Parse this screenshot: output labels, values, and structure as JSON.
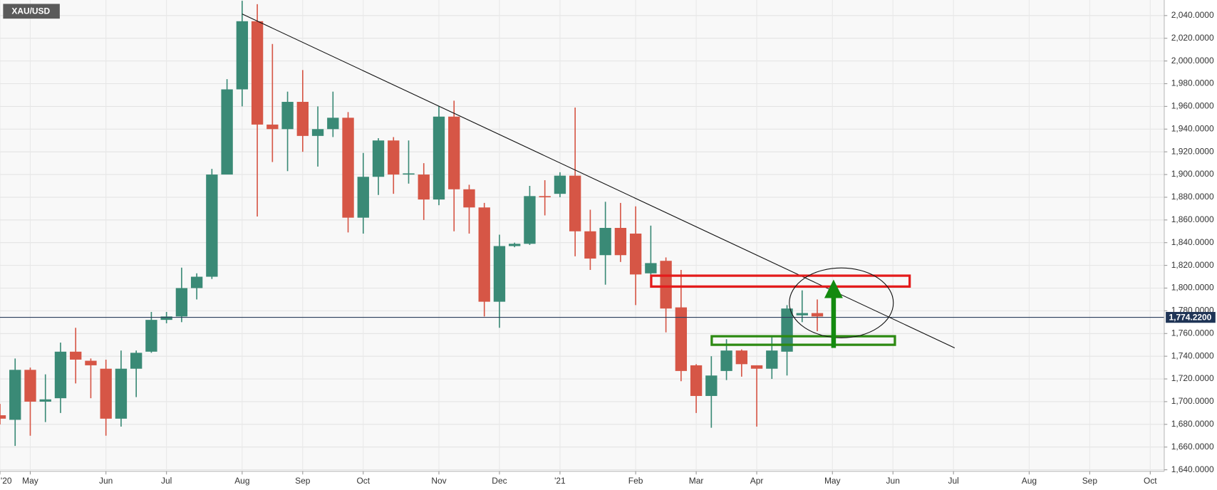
{
  "chart_data": {
    "type": "candlestick",
    "title": "XAU/USD",
    "categories": [
      "'20",
      null,
      "May",
      null,
      null,
      null,
      null,
      "Jun",
      null,
      null,
      null,
      "Jul",
      null,
      null,
      null,
      null,
      "Aug",
      null,
      null,
      null,
      "Sep",
      null,
      null,
      null,
      "Oct",
      null,
      null,
      null,
      null,
      "Nov",
      null,
      null,
      null,
      "Dec",
      null,
      null,
      null,
      "'21",
      null,
      null,
      null,
      null,
      "Feb",
      null,
      null,
      null,
      "Mar",
      null,
      null,
      null,
      "Apr",
      null,
      null,
      null,
      null,
      "May",
      null,
      null,
      null,
      "Jun",
      null,
      null,
      null,
      "Jul",
      null,
      null,
      null,
      null,
      "Aug",
      null,
      null,
      null,
      "Sep",
      null,
      null,
      null,
      "Oct"
    ],
    "open": [
      1688,
      1684,
      1728,
      1700,
      1703,
      1744,
      1736,
      1729,
      1685,
      1729,
      1744,
      1772,
      1775,
      1800,
      1810,
      1900,
      1975,
      2035,
      1944,
      1940,
      1964,
      1934,
      1940,
      1950,
      1862,
      1898,
      1930,
      1900,
      1900,
      1878,
      1951,
      1887,
      1871,
      1788,
      1837,
      1839,
      1881,
      1883,
      1899,
      1850,
      1829,
      1853,
      1848,
      1813,
      1824,
      1783,
      1732,
      1705,
      1727,
      1745,
      1732,
      1729,
      1744,
      1776,
      1778,
      null,
      null,
      null,
      null,
      null,
      null,
      null,
      null,
      null,
      null,
      null,
      null,
      null,
      null,
      null,
      null,
      null,
      null,
      null,
      null,
      null,
      null
    ],
    "high": [
      1698,
      1738,
      1730,
      1724,
      1752,
      1765,
      1738,
      1737,
      1745,
      1745,
      1779,
      1779,
      1818,
      1813,
      1905,
      1984,
      2053,
      2050,
      2015,
      1973,
      1992,
      1960,
      1973,
      1955,
      1919,
      1932,
      1933,
      1930,
      1910,
      1960,
      1965,
      1891,
      1875,
      1847,
      1840,
      1890,
      1895,
      1902,
      1959,
      1869,
      1876,
      1875,
      1872,
      1855,
      1827,
      1816,
      1733,
      1740,
      1755,
      1746,
      1732,
      1758,
      1785,
      1798,
      1790,
      null,
      null,
      null,
      null,
      null,
      null,
      null,
      null,
      null,
      null,
      null,
      null,
      null,
      null,
      null,
      null,
      null,
      null,
      null,
      null,
      null,
      null
    ],
    "low": [
      1680,
      1661,
      1670,
      1682,
      1690,
      1716,
      1703,
      1670,
      1678,
      1704,
      1743,
      1769,
      1770,
      1790,
      1808,
      1900,
      1960,
      1863,
      1911,
      1903,
      1920,
      1907,
      1933,
      1849,
      1848,
      1882,
      1883,
      1892,
      1860,
      1873,
      1850,
      1848,
      1775,
      1765,
      1836,
      1838,
      1864,
      1880,
      1828,
      1816,
      1803,
      1823,
      1785,
      1812,
      1761,
      1718,
      1690,
      1677,
      1719,
      1722,
      1678,
      1720,
      1723,
      1770,
      1762,
      null,
      null,
      null,
      null,
      null,
      null,
      null,
      null,
      null,
      null,
      null,
      null,
      null,
      null,
      null,
      null,
      null,
      null,
      null,
      null,
      null,
      null
    ],
    "close": [
      1685,
      1728,
      1700,
      1702,
      1744,
      1737,
      1732,
      1685,
      1729,
      1743,
      1772,
      1775,
      1800,
      1810,
      1900,
      1975,
      2035,
      1944,
      1940,
      1964,
      1934,
      1940,
      1950,
      1862,
      1898,
      1930,
      1900,
      1901,
      1878,
      1951,
      1887,
      1871,
      1788,
      1837,
      1839,
      1881,
      1880,
      1899,
      1850,
      1826,
      1853,
      1829,
      1812,
      1822,
      1782,
      1727,
      1705,
      1723,
      1745,
      1733,
      1729,
      1745,
      1782,
      1778,
      1775,
      null,
      null,
      null,
      null,
      null,
      null,
      null,
      null,
      null,
      null,
      null,
      null,
      null,
      null,
      null,
      null,
      null,
      null,
      null,
      null,
      null,
      null
    ],
    "up_color": "#3a8a76",
    "down_color": "#d65646",
    "ylim": [
      1638.6,
      2053.7
    ],
    "yticks": [
      {
        "value": 1640,
        "label": "1,640.0000"
      },
      {
        "value": 1660,
        "label": "1,660.0000"
      },
      {
        "value": 1680,
        "label": "1,680.0000"
      },
      {
        "value": 1700,
        "label": "1,700.0000"
      },
      {
        "value": 1720,
        "label": "1,720.0000"
      },
      {
        "value": 1740,
        "label": "1,740.0000"
      },
      {
        "value": 1760,
        "label": "1,760.0000"
      },
      {
        "value": 1780,
        "label": "1,780.0000"
      },
      {
        "value": 1800,
        "label": "1,800.0000"
      },
      {
        "value": 1820,
        "label": "1,820.0000"
      },
      {
        "value": 1840,
        "label": "1,840.0000"
      },
      {
        "value": 1860,
        "label": "1,860.0000"
      },
      {
        "value": 1880,
        "label": "1,880.0000"
      },
      {
        "value": 1900,
        "label": "1,900.0000"
      },
      {
        "value": 1920,
        "label": "1,920.0000"
      },
      {
        "value": 1940,
        "label": "1,940.0000"
      },
      {
        "value": 1960,
        "label": "1,960.0000"
      },
      {
        "value": 1980,
        "label": "1,980.0000"
      },
      {
        "value": 2000,
        "label": "2,000.0000"
      },
      {
        "value": 2020,
        "label": "2,020.0000"
      },
      {
        "value": 2040,
        "label": "2,040.0000"
      }
    ],
    "last_price": {
      "value": 1774.22,
      "label": "1,774.2200"
    },
    "grid": true
  }
}
